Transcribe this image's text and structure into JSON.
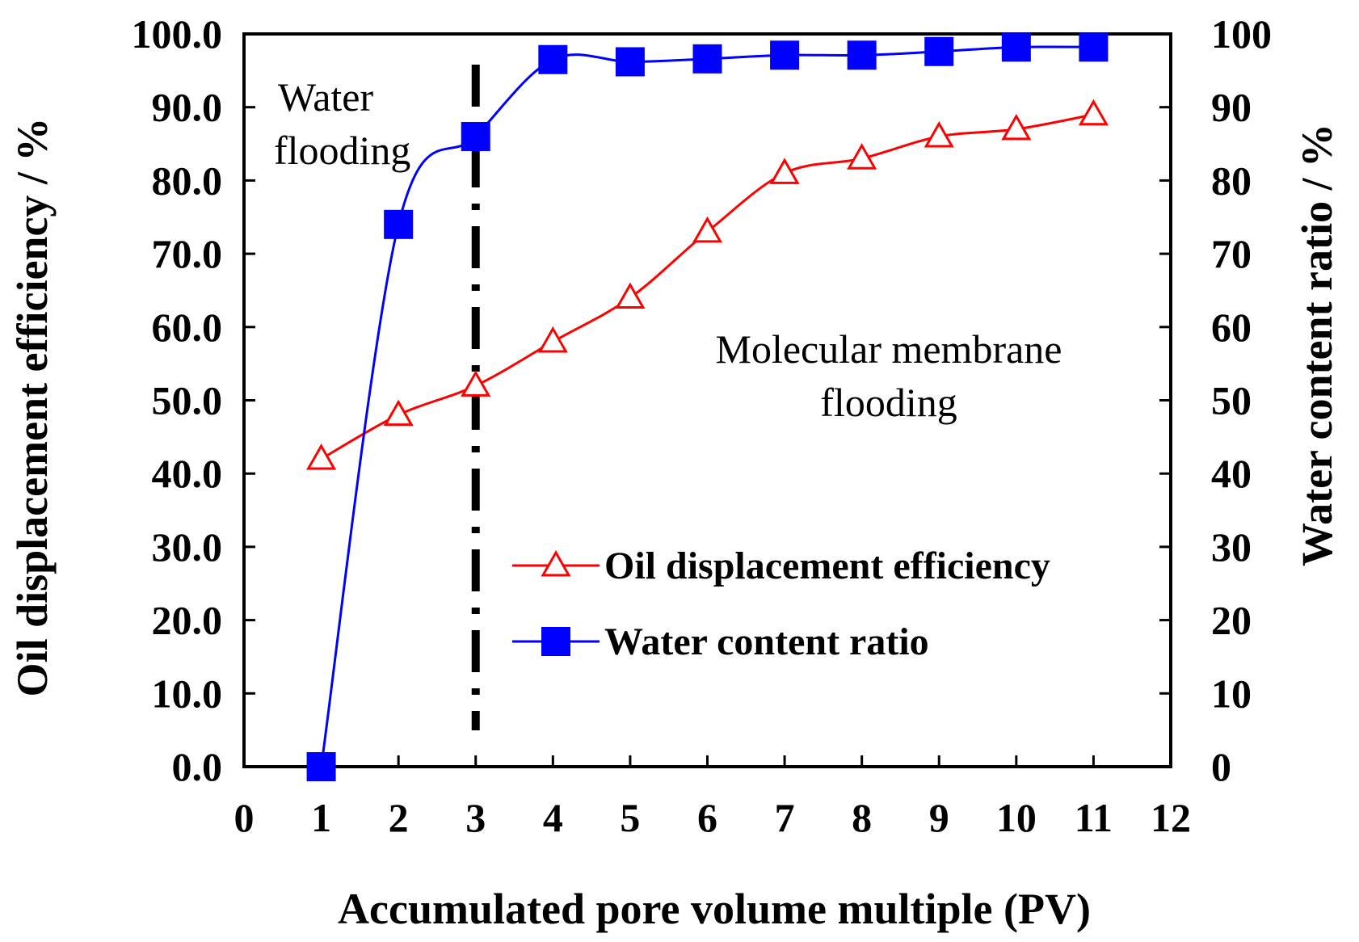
{
  "chart_data": {
    "type": "line",
    "title": "",
    "xlabel": "Accumulated pore volume multiple (PV)",
    "ylabel_left": "Oil displacement efficiency / %",
    "ylabel_right": "Water content ratio / %",
    "xlim": [
      0,
      12
    ],
    "ylim_left": [
      0,
      100
    ],
    "ylim_right": [
      0,
      100
    ],
    "x_ticks": [
      "0",
      "1",
      "2",
      "3",
      "4",
      "5",
      "6",
      "7",
      "8",
      "9",
      "10",
      "11",
      "12"
    ],
    "y_left_ticks": [
      "0.0",
      "10.0",
      "20.0",
      "30.0",
      "40.0",
      "50.0",
      "60.0",
      "70.0",
      "80.0",
      "90.0",
      "100.0"
    ],
    "y_right_ticks": [
      "0",
      "10",
      "20",
      "30",
      "40",
      "50",
      "60",
      "70",
      "80",
      "90",
      "100"
    ],
    "grid": false,
    "legend_position": "center-right",
    "divider_x": 3,
    "annotations": {
      "water_line1": "Water",
      "water_line2": "flooding",
      "membrane_line1": "Molecular membrane",
      "membrane_line2": "flooding"
    },
    "series": [
      {
        "name": "Oil displacement efficiency",
        "axis": "left",
        "color": "#ff0000",
        "marker": "open-triangle",
        "x": [
          1,
          2,
          3,
          4,
          5,
          6,
          7,
          8,
          9,
          10,
          11
        ],
        "values": [
          42.0,
          48.0,
          52.0,
          58.0,
          64.0,
          73.0,
          81.0,
          83.0,
          86.0,
          87.0,
          89.0
        ]
      },
      {
        "name": "Water content ratio",
        "axis": "right",
        "color": "#0000ff",
        "marker": "filled-square",
        "x": [
          1,
          2,
          3,
          4,
          5,
          6,
          7,
          8,
          9,
          10,
          11
        ],
        "values": [
          0,
          74,
          86,
          96.5,
          96.2,
          96.6,
          97.1,
          97.1,
          97.6,
          98.2,
          98.2
        ]
      }
    ]
  }
}
